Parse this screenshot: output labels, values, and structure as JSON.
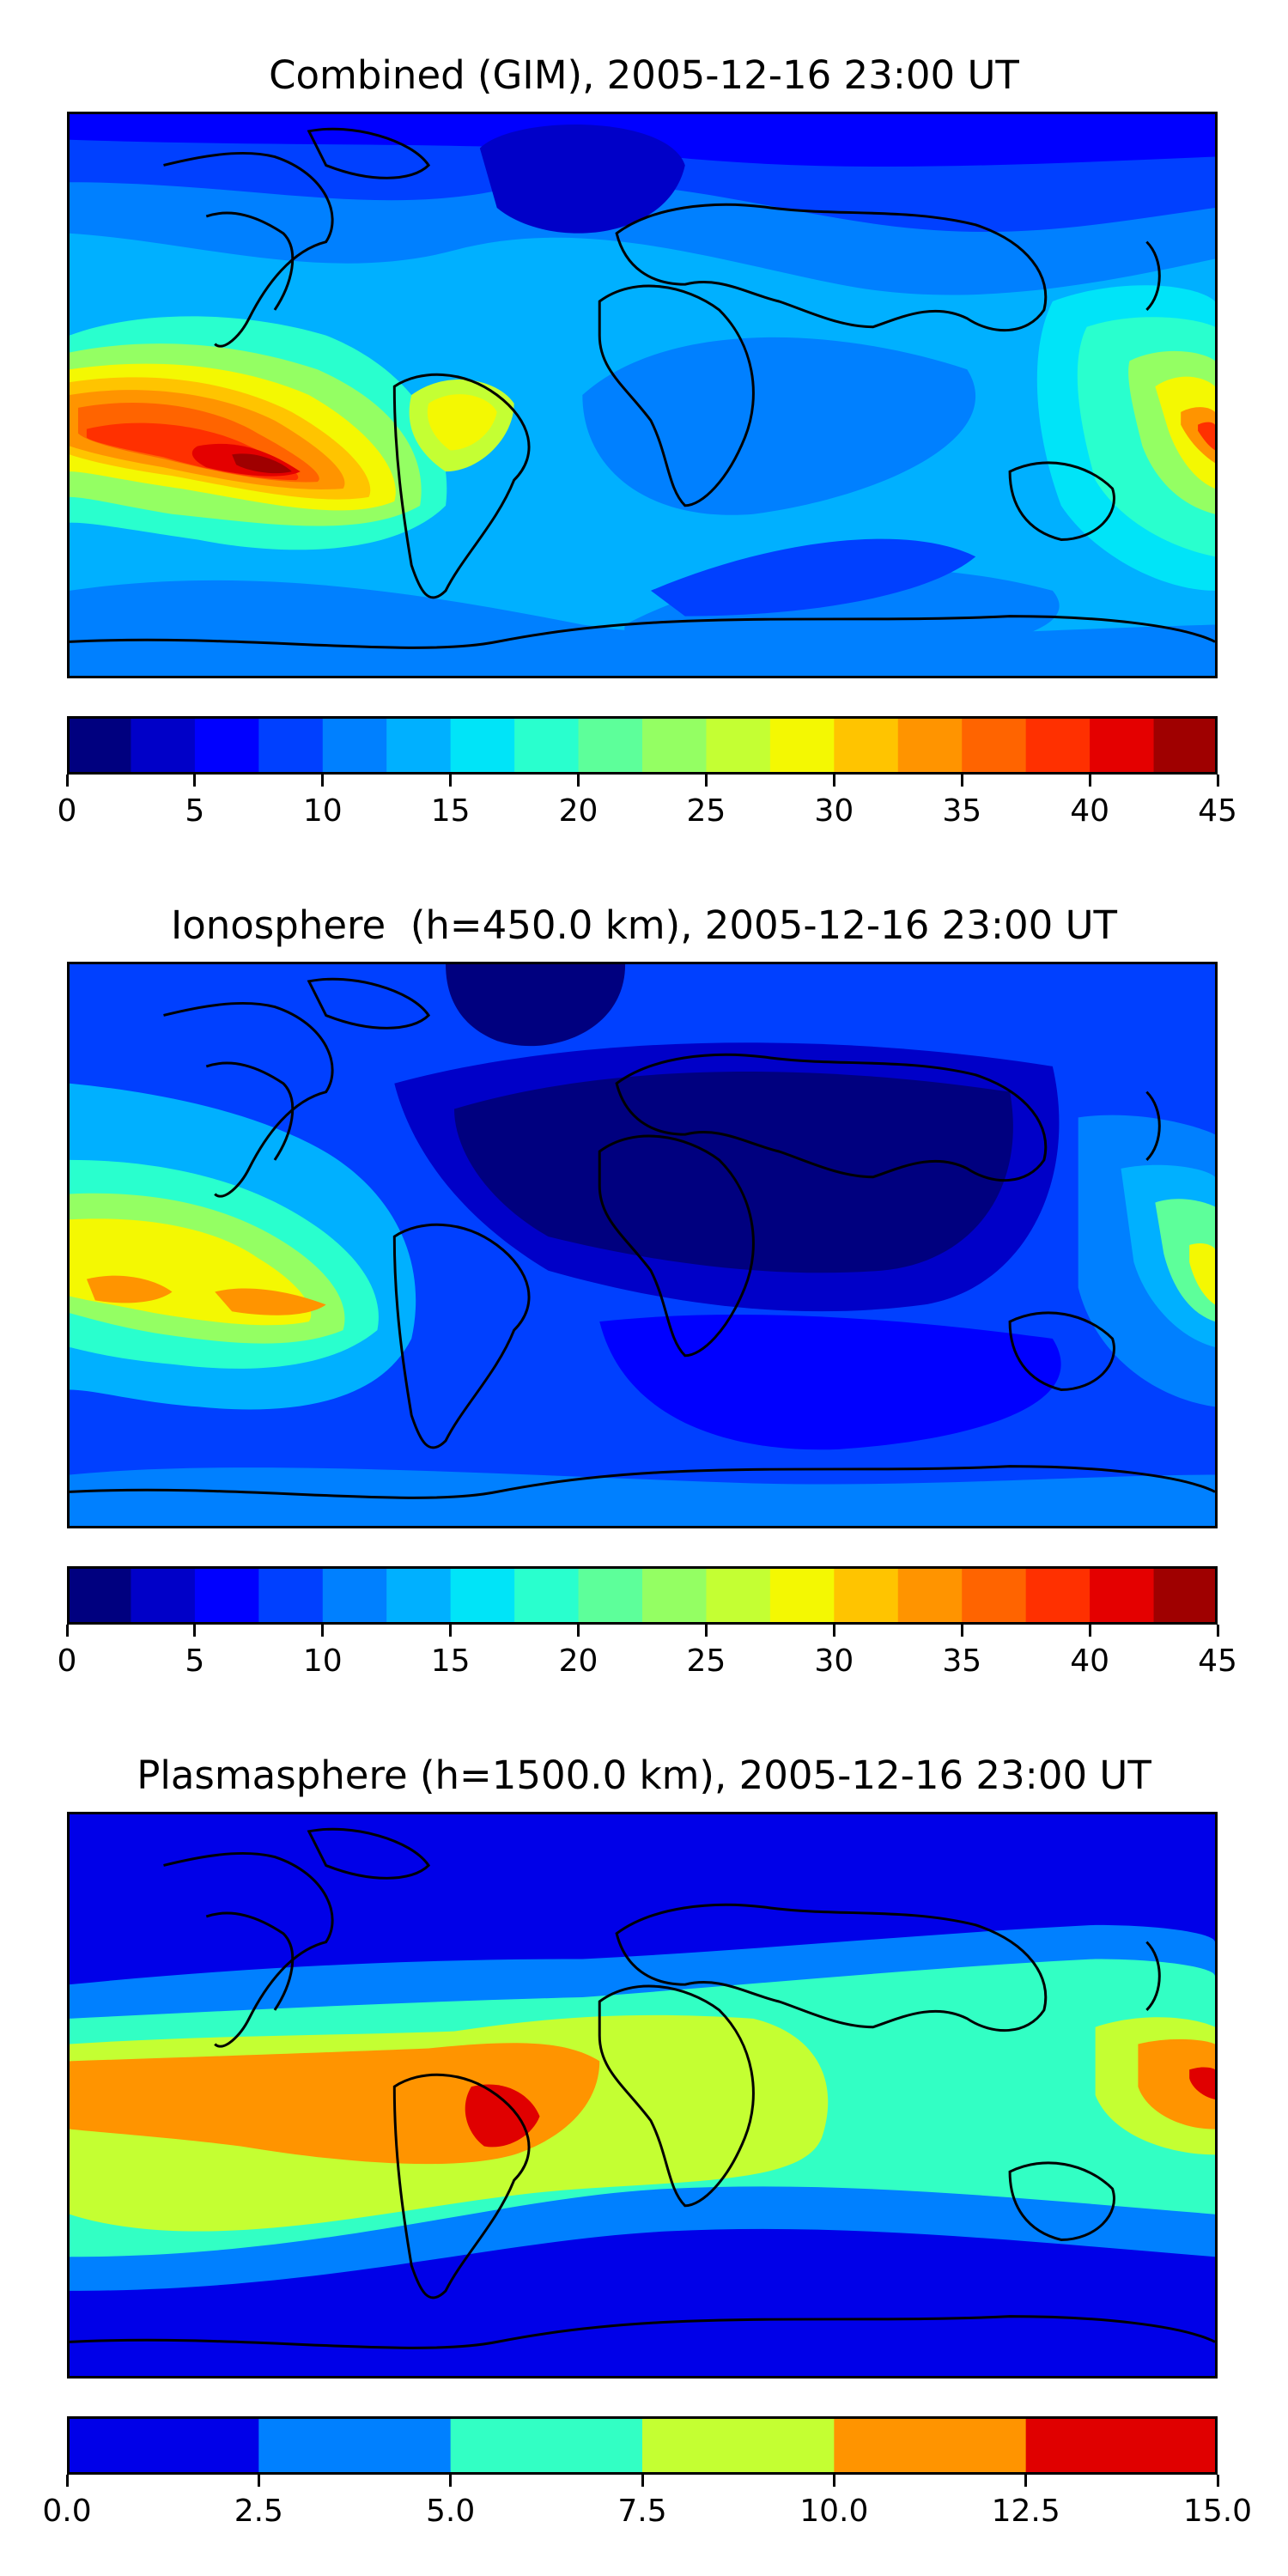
{
  "panels": [
    {
      "title": "Combined (GIM), 2005-12-16 23:00 UT",
      "colorbar": {
        "min": 0,
        "max": 45,
        "colors": [
          "#00007f",
          "#0000c8",
          "#0000ff",
          "#0040ff",
          "#0080ff",
          "#00b0ff",
          "#00e4f8",
          "#29ffce",
          "#5dff9a",
          "#94ff63",
          "#c4ff33",
          "#f4f802",
          "#ffc400",
          "#ff9400",
          "#ff6400",
          "#ff3000",
          "#e40000",
          "#9f0000"
        ],
        "ticks": [
          "0",
          "5",
          "10",
          "15",
          "20",
          "25",
          "30",
          "35",
          "40",
          "45"
        ]
      }
    },
    {
      "title": "Ionosphere  (h=450.0 km), 2005-12-16 23:00 UT",
      "colorbar": {
        "min": 0,
        "max": 45,
        "colors": [
          "#00007f",
          "#0000c8",
          "#0000ff",
          "#0040ff",
          "#0080ff",
          "#00b0ff",
          "#00e4f8",
          "#29ffce",
          "#5dff9a",
          "#94ff63",
          "#c4ff33",
          "#f4f802",
          "#ffc400",
          "#ff9400",
          "#ff6400",
          "#ff3000",
          "#e40000",
          "#9f0000"
        ],
        "ticks": [
          "0",
          "5",
          "10",
          "15",
          "20",
          "25",
          "30",
          "35",
          "40",
          "45"
        ]
      }
    },
    {
      "title": "Plasmasphere (h=1500.0 km), 2005-12-16 23:00 UT",
      "colorbar": {
        "min": 0,
        "max": 15,
        "colors": [
          "#0000e8",
          "#0080ff",
          "#32ffc4",
          "#c4ff32",
          "#ff9400",
          "#e00000"
        ],
        "ticks": [
          "0.0",
          "2.5",
          "5.0",
          "7.5",
          "10.0",
          "12.5",
          "15.0"
        ]
      }
    }
  ]
}
